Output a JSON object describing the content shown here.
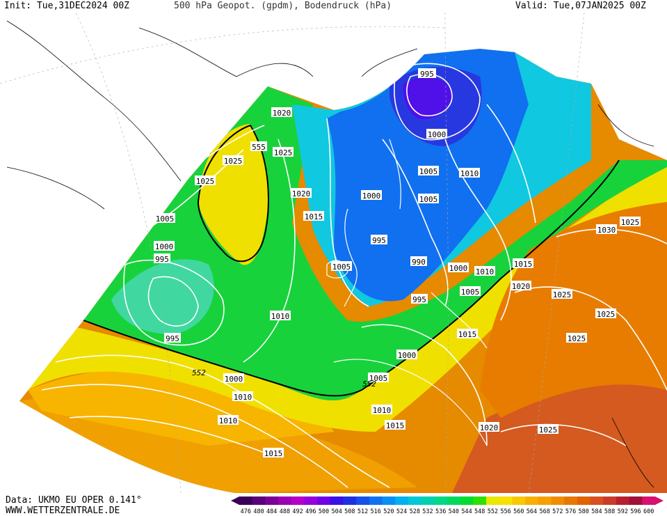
{
  "header": {
    "init": "Init: Tue,31DEC2024 00Z",
    "title": "500 hPa Geopot. (gpdm), Bodendruck (hPa)",
    "valid": "Valid: Tue,07JAN2025 00Z"
  },
  "footer": {
    "data_source": "Data: UKMO EU OPER 0.141°",
    "website": "WWW.WETTERZENTRALE.DE"
  },
  "colorbar": {
    "labels": [
      "476",
      "480",
      "484",
      "488",
      "492",
      "496",
      "500",
      "504",
      "508",
      "512",
      "516",
      "520",
      "524",
      "528",
      "532",
      "536",
      "540",
      "544",
      "548",
      "552",
      "556",
      "560",
      "564",
      "568",
      "572",
      "576",
      "580",
      "584",
      "588",
      "592",
      "596",
      "600"
    ],
    "colors": [
      "#3a0058",
      "#5a0078",
      "#7a0096",
      "#9a00b4",
      "#b400c8",
      "#9600dc",
      "#7000e6",
      "#3a10e8",
      "#2030e0",
      "#1850e8",
      "#1070f0",
      "#0890f0",
      "#00b0f0",
      "#00c8d8",
      "#00d0b0",
      "#00d888",
      "#00d860",
      "#00dc30",
      "#30e000",
      "#e8e800",
      "#f8e000",
      "#f8c800",
      "#f8b000",
      "#f8a000",
      "#f08c00",
      "#e87800",
      "#e06400",
      "#d85020",
      "#c83c28",
      "#b82030",
      "#a01038",
      "#d81070"
    ]
  },
  "isobars": [
    {
      "text": "995"
    },
    {
      "text": "1020"
    },
    {
      "text": "1000"
    },
    {
      "text": "555"
    },
    {
      "text": "1025"
    },
    {
      "text": "1025"
    },
    {
      "text": "1025"
    },
    {
      "text": "1005"
    },
    {
      "text": "1010"
    },
    {
      "text": "1020"
    },
    {
      "text": "1000"
    },
    {
      "text": "1005"
    },
    {
      "text": "1015"
    },
    {
      "text": "1005"
    },
    {
      "text": "1030"
    },
    {
      "text": "1025"
    },
    {
      "text": "1000"
    },
    {
      "text": "995"
    },
    {
      "text": "995"
    },
    {
      "text": "990"
    },
    {
      "text": "1005"
    },
    {
      "text": "1000"
    },
    {
      "text": "1010"
    },
    {
      "text": "1015"
    },
    {
      "text": "1020"
    },
    {
      "text": "1005"
    },
    {
      "text": "995"
    },
    {
      "text": "1025"
    },
    {
      "text": "1010"
    },
    {
      "text": "1025"
    },
    {
      "text": "1015"
    },
    {
      "text": "1025"
    },
    {
      "text": "995"
    },
    {
      "text": "1000"
    },
    {
      "text": "1000"
    },
    {
      "text": "1005"
    },
    {
      "text": "1010"
    },
    {
      "text": "1010"
    },
    {
      "text": "1015"
    },
    {
      "text": "1020"
    },
    {
      "text": "1025"
    },
    {
      "text": "1015"
    }
  ],
  "contour_labels": [
    {
      "text": "552"
    },
    {
      "text": "552"
    }
  ]
}
